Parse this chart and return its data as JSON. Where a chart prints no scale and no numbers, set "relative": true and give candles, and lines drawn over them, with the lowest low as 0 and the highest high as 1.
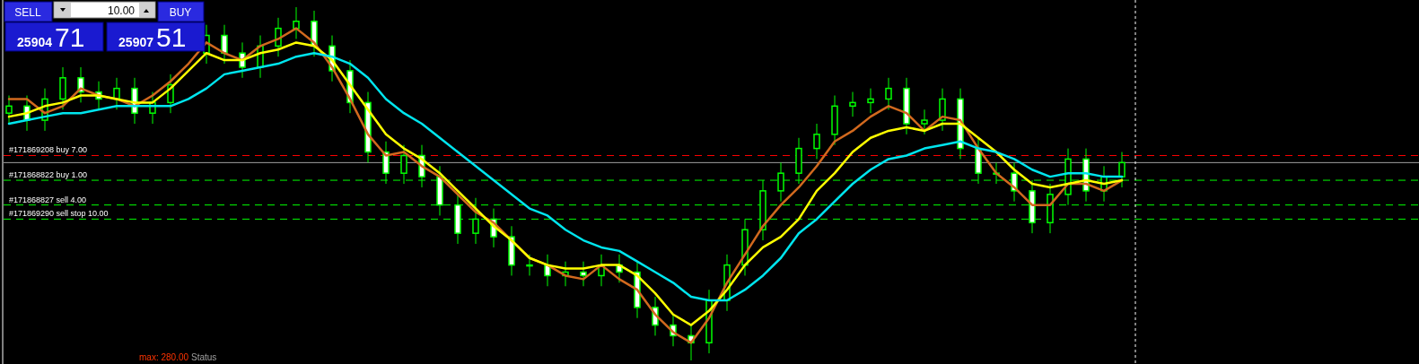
{
  "chart_data": {
    "type": "candlestick",
    "relative": true,
    "categories": [
      null,
      null,
      null,
      null,
      null,
      null,
      null,
      null,
      null,
      null,
      null,
      null,
      null,
      null,
      null,
      null,
      null,
      null,
      null,
      null,
      null,
      null,
      null,
      null,
      null,
      null,
      null,
      null,
      null,
      null,
      null,
      null,
      null,
      null,
      null,
      null,
      null,
      null,
      null,
      null,
      null,
      null,
      null,
      null,
      null,
      null,
      null,
      null,
      null,
      null,
      null,
      null,
      null,
      null,
      null,
      null,
      null,
      null,
      null,
      null,
      null,
      null,
      null
    ],
    "ohlc": [
      [
        0.7,
        0.75,
        0.67,
        0.72
      ],
      [
        0.72,
        0.75,
        0.65,
        0.68
      ],
      [
        0.68,
        0.77,
        0.65,
        0.74
      ],
      [
        0.74,
        0.83,
        0.71,
        0.8
      ],
      [
        0.8,
        0.83,
        0.73,
        0.76
      ],
      [
        0.76,
        0.79,
        0.71,
        0.74
      ],
      [
        0.74,
        0.8,
        0.71,
        0.77
      ],
      [
        0.77,
        0.8,
        0.67,
        0.7
      ],
      [
        0.7,
        0.76,
        0.67,
        0.73
      ],
      [
        0.73,
        0.81,
        0.7,
        0.78
      ],
      null,
      [
        0.87,
        0.95,
        0.84,
        0.92
      ],
      [
        0.92,
        0.95,
        0.84,
        0.87
      ],
      [
        0.87,
        0.9,
        0.8,
        0.83
      ],
      [
        0.83,
        0.92,
        0.8,
        0.89
      ],
      [
        0.89,
        0.97,
        0.86,
        0.94
      ],
      [
        0.94,
        1.0,
        0.91,
        0.96
      ],
      [
        0.96,
        0.99,
        0.86,
        0.89
      ],
      [
        0.89,
        0.92,
        0.79,
        0.82
      ],
      [
        0.82,
        0.85,
        0.7,
        0.73
      ],
      [
        0.73,
        0.76,
        0.56,
        0.59
      ],
      [
        0.59,
        0.62,
        0.5,
        0.53
      ],
      [
        0.53,
        0.61,
        0.5,
        0.58
      ],
      [
        0.58,
        0.61,
        0.49,
        0.52
      ],
      [
        0.52,
        0.55,
        0.41,
        0.44
      ],
      [
        0.44,
        0.47,
        0.33,
        0.36
      ],
      [
        0.36,
        0.46,
        0.33,
        0.4
      ],
      [
        0.4,
        0.43,
        0.32,
        0.35
      ],
      [
        0.35,
        0.38,
        0.24,
        0.27
      ],
      [
        0.27,
        0.3,
        0.24,
        0.27
      ],
      [
        0.27,
        0.3,
        0.21,
        0.24
      ],
      [
        0.24,
        0.28,
        0.21,
        0.25
      ],
      [
        0.25,
        0.28,
        0.21,
        0.24
      ],
      [
        0.24,
        0.3,
        0.21,
        0.27
      ],
      [
        0.27,
        0.3,
        0.22,
        0.25
      ],
      [
        0.25,
        0.28,
        0.12,
        0.15
      ],
      [
        0.15,
        0.18,
        0.07,
        0.1
      ],
      [
        0.1,
        0.13,
        0.04,
        0.07
      ],
      [
        0.07,
        0.1,
        0.0,
        0.05
      ],
      [
        0.05,
        0.2,
        0.02,
        0.17
      ],
      [
        0.17,
        0.3,
        0.14,
        0.27
      ],
      [
        0.27,
        0.4,
        0.24,
        0.37
      ],
      [
        0.37,
        0.51,
        0.34,
        0.48
      ],
      [
        0.48,
        0.56,
        0.45,
        0.53
      ],
      [
        0.53,
        0.63,
        0.5,
        0.6
      ],
      [
        0.6,
        0.67,
        0.57,
        0.64
      ],
      [
        0.64,
        0.75,
        0.61,
        0.72
      ],
      [
        0.72,
        0.76,
        0.69,
        0.73
      ],
      [
        0.73,
        0.77,
        0.7,
        0.74
      ],
      [
        0.74,
        0.8,
        0.71,
        0.77
      ],
      [
        0.77,
        0.8,
        0.64,
        0.67
      ],
      [
        0.67,
        0.71,
        0.64,
        0.68
      ],
      [
        0.68,
        0.77,
        0.65,
        0.74
      ],
      [
        0.74,
        0.77,
        0.57,
        0.6
      ],
      [
        0.6,
        0.63,
        0.5,
        0.53
      ],
      [
        0.53,
        0.56,
        0.5,
        0.53
      ],
      [
        0.53,
        0.56,
        0.45,
        0.48
      ],
      [
        0.48,
        0.51,
        0.36,
        0.39
      ],
      [
        0.39,
        0.5,
        0.36,
        0.47
      ],
      [
        0.47,
        0.6,
        0.44,
        0.57
      ],
      [
        0.57,
        0.6,
        0.45,
        0.48
      ],
      [
        0.48,
        0.55,
        0.45,
        0.52
      ],
      [
        0.52,
        0.59,
        0.49,
        0.56
      ]
    ],
    "series": [
      {
        "type": "line",
        "color": "#d2691e",
        "values": [
          0.74,
          0.74,
          0.7,
          0.72,
          0.77,
          0.75,
          0.74,
          0.72,
          0.75,
          0.79,
          0.84,
          0.9,
          0.87,
          0.85,
          0.89,
          0.91,
          0.94,
          0.9,
          0.83,
          0.74,
          0.64,
          0.58,
          0.59,
          0.55,
          0.52,
          0.47,
          0.42,
          0.39,
          0.34,
          0.29,
          0.27,
          0.24,
          0.23,
          0.27,
          0.23,
          0.2,
          0.13,
          0.08,
          0.05,
          0.12,
          0.22,
          0.3,
          0.38,
          0.44,
          0.49,
          0.55,
          0.62,
          0.65,
          0.69,
          0.72,
          0.7,
          0.65,
          0.69,
          0.68,
          0.6,
          0.53,
          0.49,
          0.44,
          0.44,
          0.5,
          0.5,
          0.48,
          0.51
        ]
      },
      {
        "type": "line",
        "color": "#ffff00",
        "values": [
          0.69,
          0.7,
          0.72,
          0.73,
          0.75,
          0.75,
          0.74,
          0.73,
          0.73,
          0.77,
          0.82,
          0.87,
          0.85,
          0.85,
          0.87,
          0.88,
          0.9,
          0.89,
          0.85,
          0.78,
          0.71,
          0.64,
          0.6,
          0.57,
          0.53,
          0.48,
          0.43,
          0.38,
          0.34,
          0.29,
          0.27,
          0.26,
          0.26,
          0.27,
          0.27,
          0.24,
          0.19,
          0.13,
          0.1,
          0.14,
          0.2,
          0.27,
          0.32,
          0.35,
          0.4,
          0.48,
          0.53,
          0.59,
          0.63,
          0.65,
          0.66,
          0.65,
          0.67,
          0.67,
          0.63,
          0.59,
          0.54,
          0.5,
          0.49,
          0.5,
          0.51,
          0.5,
          0.51
        ]
      },
      {
        "type": "line",
        "color": "#00e5ee",
        "values": [
          0.67,
          0.68,
          0.69,
          0.7,
          0.7,
          0.71,
          0.72,
          0.72,
          0.72,
          0.72,
          0.74,
          0.77,
          0.81,
          0.82,
          0.83,
          0.84,
          0.86,
          0.87,
          0.86,
          0.84,
          0.8,
          0.74,
          0.7,
          0.67,
          0.63,
          0.59,
          0.55,
          0.51,
          0.47,
          0.43,
          0.41,
          0.37,
          0.34,
          0.32,
          0.31,
          0.28,
          0.25,
          0.22,
          0.18,
          0.17,
          0.17,
          0.2,
          0.24,
          0.29,
          0.36,
          0.4,
          0.45,
          0.5,
          0.54,
          0.57,
          0.58,
          0.6,
          0.61,
          0.62,
          0.6,
          0.59,
          0.57,
          0.54,
          0.52,
          0.53,
          0.53,
          0.52,
          0.52
        ]
      }
    ],
    "ref_lines": [
      {
        "axis": "y",
        "value": 0.58,
        "label": "#171869208 buy 7.00",
        "color": "#ff0000",
        "line_style": "dashed"
      },
      {
        "axis": "y",
        "value": 0.56,
        "label": null,
        "color": "#a0a0a0",
        "line_style": "solid"
      },
      {
        "axis": "y",
        "value": 0.51,
        "label": "#171868822 buy 1.00",
        "color": "#00ff00",
        "line_style": "dashed"
      },
      {
        "axis": "y",
        "value": 0.44,
        "label": "#171868827 sell 4.00",
        "color": "#00ff00",
        "line_style": "dashed"
      },
      {
        "axis": "y",
        "value": 0.4,
        "label": "#171869290 sell stop 10.00",
        "color": "#00ff00",
        "line_style": "dashed"
      }
    ],
    "annotations": [
      "SELL",
      "10.00",
      "BUY",
      "25904",
      "71",
      "25907",
      "51",
      "max: 280.00",
      "Status"
    ]
  }
}
